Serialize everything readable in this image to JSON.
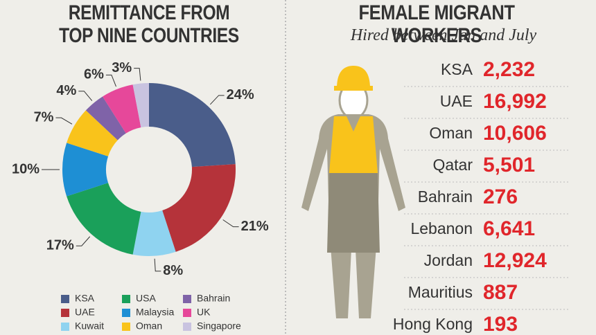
{
  "chart_data": [
    {
      "type": "donut",
      "title": "REMITTANCE FROM TOP NINE COUNTRIES",
      "categories": [
        "KSA",
        "UAE",
        "Kuwait",
        "USA",
        "Malaysia",
        "Oman",
        "Bahrain",
        "UK",
        "Singapore"
      ],
      "values": [
        24,
        21,
        8,
        17,
        10,
        7,
        4,
        6,
        3
      ],
      "value_labels": [
        "24%",
        "21%",
        "8%",
        "17%",
        "10%",
        "7%",
        "4%",
        "6%",
        "3%"
      ],
      "colors": [
        "#4a5d8a",
        "#b5333a",
        "#8fd3f0",
        "#1aa05a",
        "#1e8fd4",
        "#f9c31b",
        "#7f63a8",
        "#e6489a",
        "#c9c3e0"
      ]
    },
    {
      "type": "table",
      "title": "FEMALE MIGRANT WORKERS",
      "subtitle": "Hired between Jan and July",
      "categories": [
        "KSA",
        "UAE",
        "Oman",
        "Qatar",
        "Bahrain",
        "Lebanon",
        "Jordan",
        "Mauritius",
        "Hong Kong"
      ],
      "values": [
        2232,
        16992,
        10606,
        5501,
        276,
        6641,
        12924,
        887,
        193
      ],
      "value_labels": [
        "2,232",
        "16,992",
        "10,606",
        "5,501",
        "276",
        "6,641",
        "12,924",
        "887",
        "193"
      ],
      "color": "#e0262b"
    }
  ]
}
